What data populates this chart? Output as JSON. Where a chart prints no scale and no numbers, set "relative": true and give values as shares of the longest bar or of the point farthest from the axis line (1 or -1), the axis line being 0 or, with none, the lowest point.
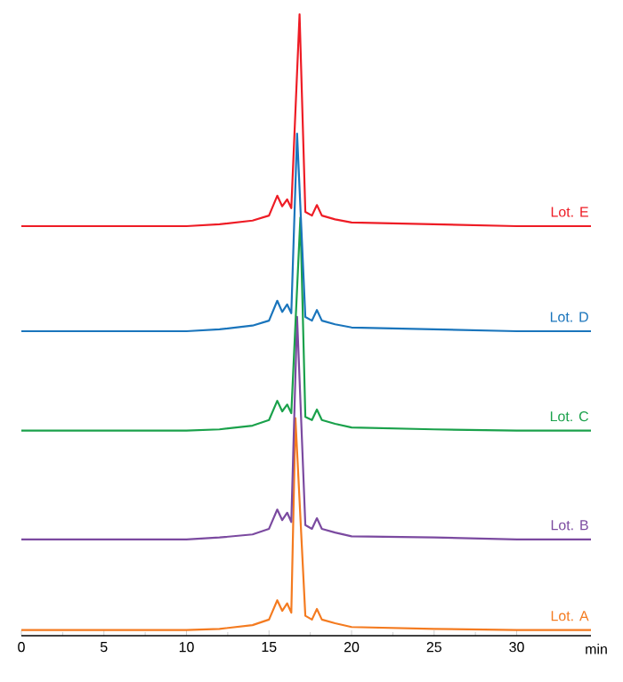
{
  "chart_data": {
    "type": "line",
    "relative": true,
    "xlabel": "min",
    "xlim": [
      0,
      34.5
    ],
    "xticks": [
      0,
      5,
      10,
      15,
      20,
      25,
      30
    ],
    "series": [
      {
        "name": "Lot. A",
        "color": "#f47b20",
        "x": [
          0,
          5,
          10,
          12,
          14,
          15,
          15.5,
          15.8,
          16.1,
          16.35,
          16.6,
          17.2,
          17.6,
          17.9,
          18.2,
          19,
          20,
          25,
          30,
          34.5
        ],
        "values": [
          0.009,
          0.009,
          0.009,
          0.011,
          0.017,
          0.026,
          0.057,
          0.04,
          0.052,
          0.037,
          0.35,
          0.032,
          0.026,
          0.043,
          0.026,
          0.02,
          0.014,
          0.011,
          0.009,
          0.009
        ]
      },
      {
        "name": "Lot. B",
        "color": "#7b4aa0",
        "x": [
          0,
          5,
          10,
          12,
          14,
          15,
          15.5,
          15.8,
          16.1,
          16.35,
          16.7,
          17.2,
          17.6,
          17.9,
          18.2,
          19,
          20,
          25,
          30,
          34.5
        ],
        "values": [
          0.155,
          0.155,
          0.155,
          0.158,
          0.163,
          0.172,
          0.203,
          0.186,
          0.198,
          0.183,
          0.513,
          0.178,
          0.172,
          0.189,
          0.172,
          0.166,
          0.16,
          0.158,
          0.155,
          0.155
        ]
      },
      {
        "name": "Lot. C",
        "color": "#1aa14b",
        "x": [
          0,
          5,
          10,
          12,
          14,
          15,
          15.5,
          15.8,
          16.1,
          16.35,
          16.9,
          17.2,
          17.6,
          17.9,
          18.2,
          19,
          20,
          25,
          30,
          34.5
        ],
        "values": [
          0.33,
          0.33,
          0.33,
          0.332,
          0.338,
          0.347,
          0.378,
          0.361,
          0.372,
          0.358,
          0.673,
          0.352,
          0.347,
          0.364,
          0.347,
          0.341,
          0.335,
          0.332,
          0.33,
          0.33
        ]
      },
      {
        "name": "Lot. D",
        "color": "#1a75bc",
        "x": [
          0,
          5,
          10,
          12,
          14,
          15,
          15.5,
          15.8,
          16.1,
          16.35,
          16.7,
          17.2,
          17.6,
          17.9,
          18.2,
          19,
          20,
          25,
          30,
          34.5
        ],
        "values": [
          0.49,
          0.49,
          0.49,
          0.493,
          0.499,
          0.507,
          0.539,
          0.521,
          0.533,
          0.519,
          0.808,
          0.513,
          0.507,
          0.524,
          0.507,
          0.501,
          0.496,
          0.493,
          0.49,
          0.49
        ]
      },
      {
        "name": "Lot. E",
        "color": "#ee1c25",
        "x": [
          0,
          5,
          10,
          12,
          14,
          15,
          15.5,
          15.8,
          16.1,
          16.35,
          16.85,
          17.2,
          17.6,
          17.9,
          18.2,
          19,
          20,
          25,
          30,
          34.5
        ],
        "values": [
          0.659,
          0.659,
          0.659,
          0.662,
          0.668,
          0.676,
          0.708,
          0.691,
          0.702,
          0.688,
          1,
          0.682,
          0.676,
          0.693,
          0.676,
          0.67,
          0.665,
          0.662,
          0.659,
          0.659
        ]
      }
    ]
  }
}
